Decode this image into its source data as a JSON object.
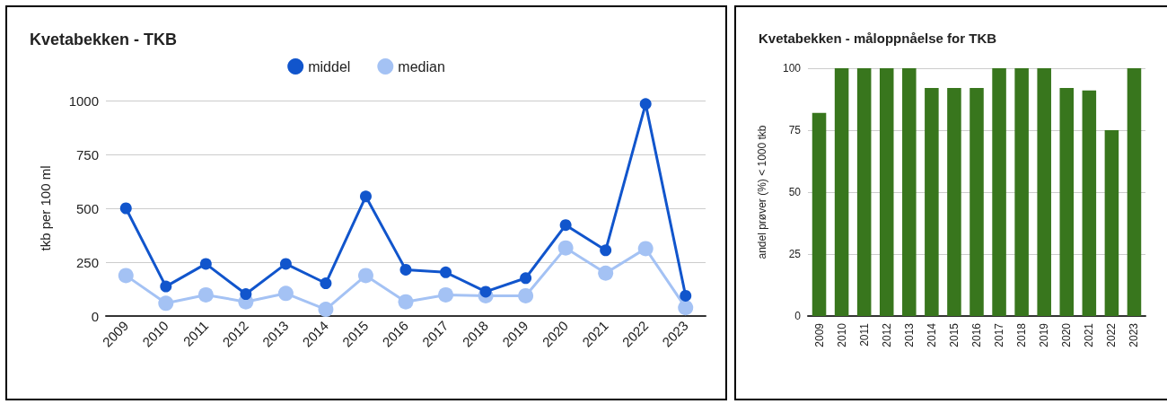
{
  "chart_data": [
    {
      "type": "line",
      "title": "Kvetabekken - TKB",
      "ylabel": "tkb per 100 ml",
      "categories": [
        "2009",
        "2010",
        "2011",
        "2012",
        "2013",
        "2014",
        "2015",
        "2016",
        "2017",
        "2018",
        "2019",
        "2020",
        "2021",
        "2022",
        "2023"
      ],
      "series": [
        {
          "name": "middel",
          "color": "#1155cc",
          "values": [
            500,
            137,
            242,
            102,
            242,
            152,
            555,
            215,
            203,
            113,
            176,
            422,
            305,
            984,
            94
          ]
        },
        {
          "name": "median",
          "color": "#a4c2f4",
          "values": [
            188,
            59,
            98,
            66,
            105,
            31,
            188,
            66,
            98,
            94,
            94,
            316,
            199,
            313,
            39
          ]
        }
      ],
      "ylim": [
        0,
        1000
      ],
      "yticks": [
        0,
        250,
        500,
        750,
        1000
      ],
      "grid": "y",
      "legend": "top",
      "marker": "circle"
    },
    {
      "type": "bar",
      "title": "Kvetabekken - måloppnåelse for TKB",
      "ylabel": "andel prøver (%) < 1000 tkb",
      "categories": [
        "2009",
        "2010",
        "2011",
        "2012",
        "2013",
        "2014",
        "2015",
        "2016",
        "2017",
        "2018",
        "2019",
        "2020",
        "2021",
        "2022",
        "2023"
      ],
      "series": [
        {
          "color": "#38761d",
          "values": [
            82,
            100,
            100,
            100,
            100,
            92,
            92,
            92,
            100,
            100,
            100,
            92,
            91,
            75,
            100
          ]
        }
      ],
      "ylim": [
        0,
        100
      ],
      "yticks": [
        0,
        25,
        50,
        75,
        100
      ],
      "grid": "y",
      "legend": false
    }
  ]
}
